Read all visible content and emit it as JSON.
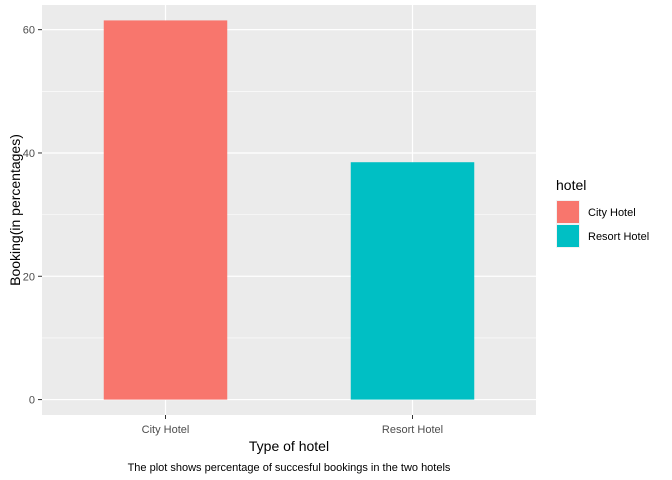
{
  "chart_data": {
    "type": "bar",
    "categories": [
      "City Hotel",
      "Resort Hotel"
    ],
    "values": [
      61.5,
      38.5
    ],
    "xlabel": "Type of hotel",
    "ylabel": "Booking(in percentages)",
    "caption": "The plot shows percentage of succesful bookings in the two hotels",
    "ylim": [
      -2.5,
      64
    ],
    "yticks": [
      0,
      20,
      40,
      60
    ],
    "grid": true,
    "colors": [
      "#F8766D",
      "#00BFC4"
    ],
    "panel_background": "#EBEBEB",
    "legend": {
      "title": "hotel",
      "position": "right",
      "entries": [
        "City Hotel",
        "Resort Hotel"
      ]
    }
  }
}
